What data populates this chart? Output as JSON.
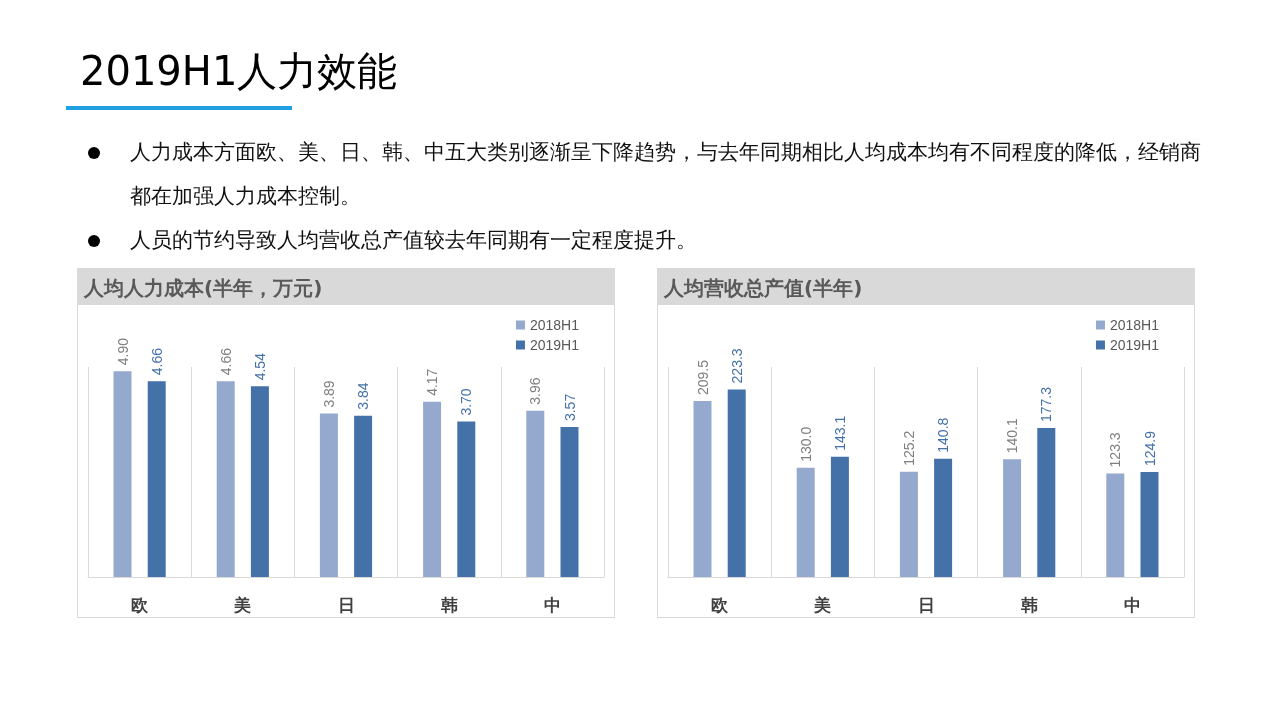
{
  "chart_data": [
    {
      "type": "other",
      "title": "2019H1人力效能",
      "annotations": [
        "人力成本方面欧、美、日、韩、中五大类别逐渐呈下降趋势，与去年同期相比人均成本均有不同程度的降低，经销商都在加强人力成本控制。",
        "人员的节约导致人均营收总产值较去年同期有一定程度提升。"
      ]
    },
    {
      "type": "bar",
      "title": "人均人力成本(半年，万元)",
      "categories": [
        "欧",
        "美",
        "日",
        "韩",
        "中"
      ],
      "legend": "top right",
      "grid": "x",
      "series": [
        {
          "name": "2018H1",
          "color": "#95a9cf",
          "values": [
            4.9,
            4.66,
            3.89,
            4.17,
            3.96
          ],
          "value_labels": [
            "4.90",
            "4.66",
            "3.89",
            "4.17",
            "3.96"
          ]
        },
        {
          "name": "2019H1",
          "color": "#4571a9",
          "values": [
            4.66,
            4.54,
            3.84,
            3.7,
            3.57
          ],
          "value_labels": [
            "4.66",
            "4.54",
            "3.84",
            "3.70",
            "3.57"
          ]
        }
      ]
    },
    {
      "type": "bar",
      "title": "人均营收总产值(半年)",
      "categories": [
        "欧",
        "美",
        "日",
        "韩",
        "中"
      ],
      "legend": "top right",
      "grid": "x",
      "series": [
        {
          "name": "2018H1",
          "color": "#95a9cf",
          "values": [
            209.5,
            130.0,
            125.2,
            140.1,
            123.3
          ],
          "value_labels": [
            "209.5",
            "130.0",
            "125.2",
            "140.1",
            "123.3"
          ]
        },
        {
          "name": "2019H1",
          "color": "#4571a9",
          "values": [
            223.3,
            143.1,
            140.8,
            177.3,
            124.9
          ],
          "value_labels": [
            "223.3",
            "143.1",
            "140.8",
            "177.3",
            "124.9"
          ]
        }
      ]
    }
  ]
}
